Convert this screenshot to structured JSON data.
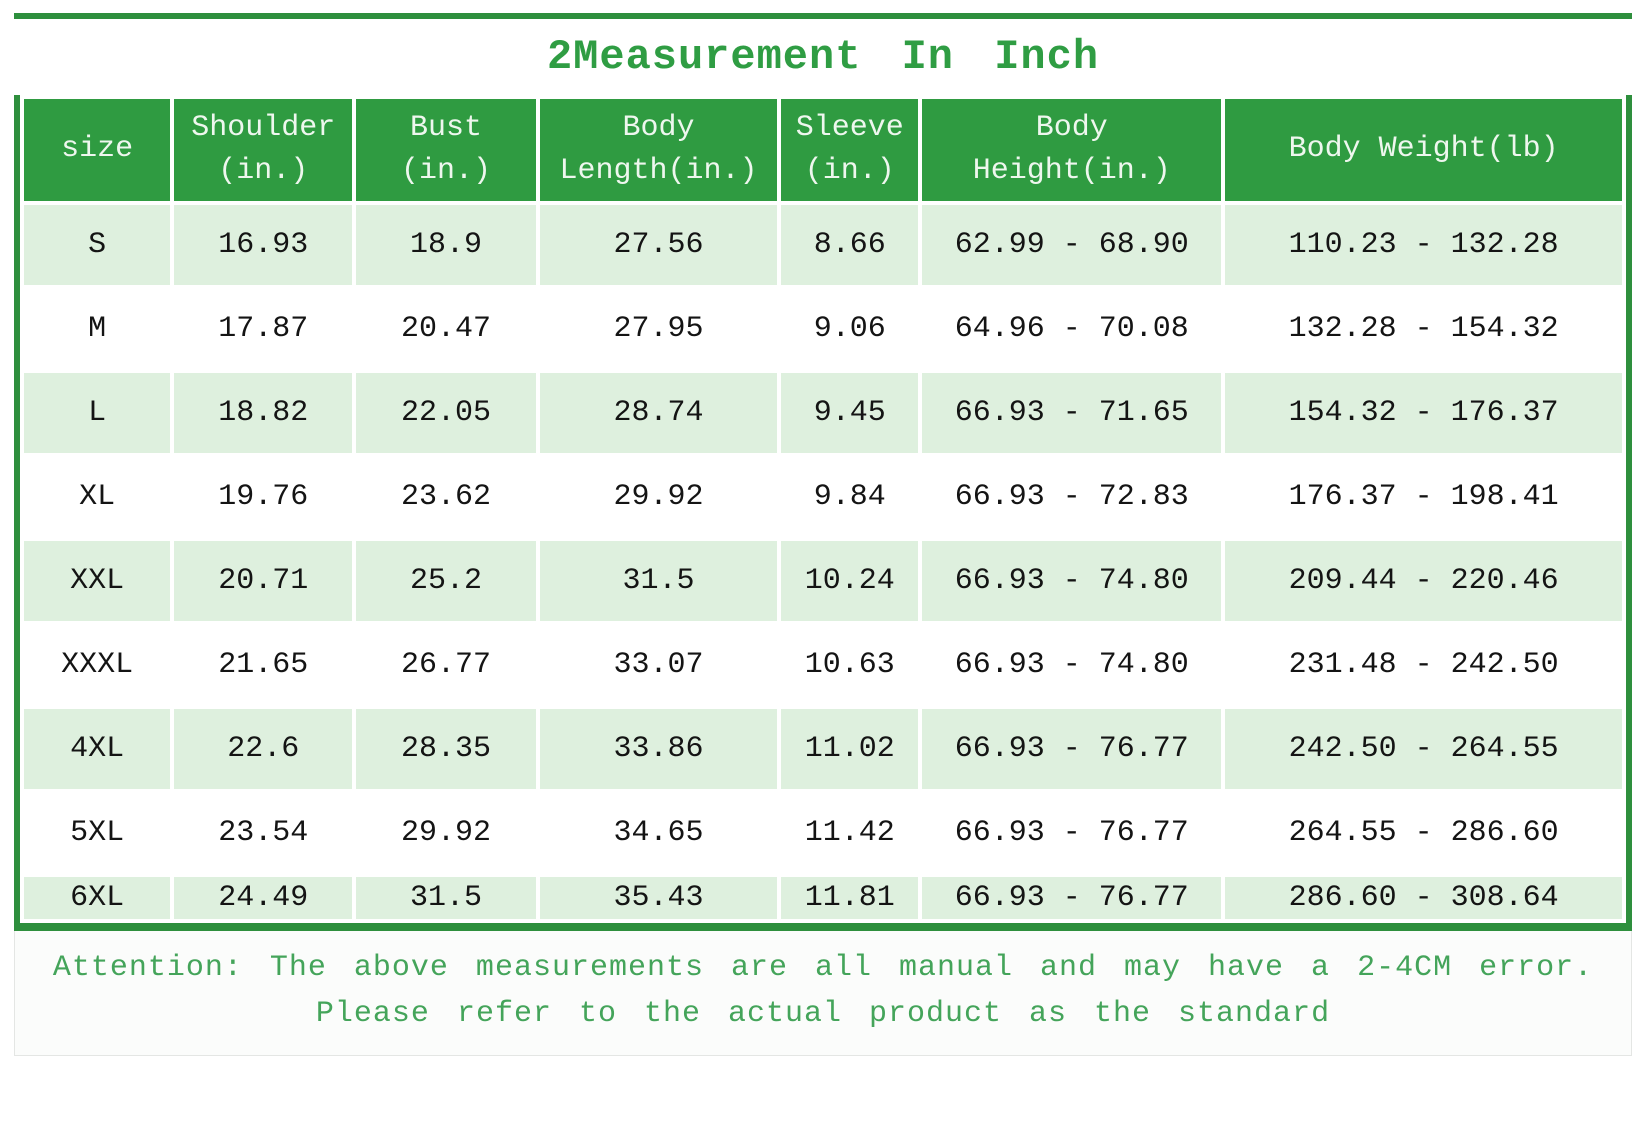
{
  "title": "2Measurement In Inch",
  "table": {
    "columns": [
      "size",
      "Shoulder\n(in.)",
      "Bust\n(in.)",
      "Body\nLength(in.)",
      "Sleeve\n(in.)",
      "Body\nHeight(in.)",
      "Body Weight(lb)"
    ],
    "rows": [
      [
        "S",
        "16.93",
        "18.9",
        "27.56",
        "8.66",
        "62.99 - 68.90",
        "110.23 - 132.28"
      ],
      [
        "M",
        "17.87",
        "20.47",
        "27.95",
        "9.06",
        "64.96 - 70.08",
        "132.28 - 154.32"
      ],
      [
        "L",
        "18.82",
        "22.05",
        "28.74",
        "9.45",
        "66.93 - 71.65",
        "154.32 - 176.37"
      ],
      [
        "XL",
        "19.76",
        "23.62",
        "29.92",
        "9.84",
        "66.93 - 72.83",
        "176.37 - 198.41"
      ],
      [
        "XXL",
        "20.71",
        "25.2",
        "31.5",
        "10.24",
        "66.93 - 74.80",
        "209.44 - 220.46"
      ],
      [
        "XXXL",
        "21.65",
        "26.77",
        "33.07",
        "10.63",
        "66.93 - 74.80",
        "231.48 - 242.50"
      ],
      [
        "4XL",
        "22.6",
        "28.35",
        "33.86",
        "11.02",
        "66.93 - 76.77",
        "242.50 - 264.55"
      ],
      [
        "5XL",
        "23.54",
        "29.92",
        "34.65",
        "11.42",
        "66.93 - 76.77",
        "264.55 - 286.60"
      ],
      [
        "6XL",
        "24.49",
        "31.5",
        "35.43",
        "11.81",
        "66.93 - 76.77",
        "286.60 - 308.64"
      ]
    ]
  },
  "notes": {
    "line1": "Attention: The above measurements are all manual and may have a 2-4CM error.",
    "line2": "Please refer to the actual product as the standard"
  },
  "colors": {
    "header_green": "#2f9b41",
    "border_green": "#2e8f3d",
    "row_green": "#def0de",
    "title_green": "#2f9d43",
    "note_green": "#44a45a"
  }
}
